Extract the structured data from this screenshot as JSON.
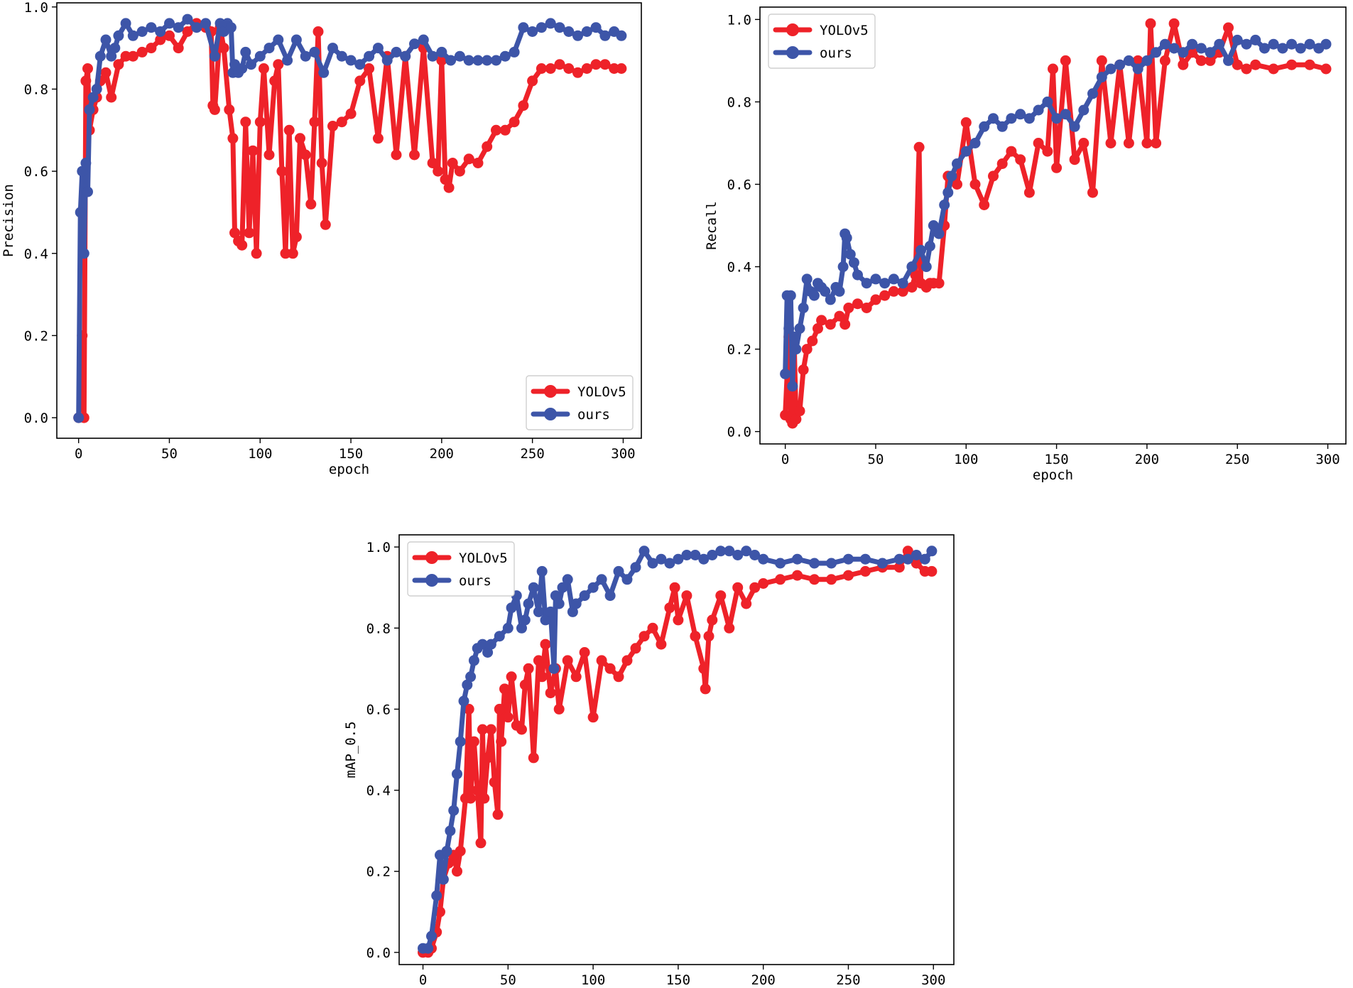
{
  "colors": {
    "yolov5": "#ee2229",
    "ours": "#3d55a8"
  },
  "chart_data": [
    {
      "type": "line",
      "ylabel": "Precision",
      "xlabel": "epoch",
      "xlim": [
        -12,
        310
      ],
      "ylim": [
        -0.05,
        1.01
      ],
      "xticks": [
        0,
        50,
        100,
        150,
        200,
        250,
        300
      ],
      "yticks": [
        0.0,
        0.2,
        0.4,
        0.6,
        0.8,
        1.0
      ],
      "xtick_labels": [
        "0",
        "50",
        "100",
        "150",
        "200",
        "250",
        "300"
      ],
      "ytick_labels": [
        "0.0",
        "0.2",
        "0.4",
        "0.6",
        "0.8",
        "1.0"
      ],
      "legend_position": "lower-right",
      "series": [
        {
          "name": "YOLOv5",
          "color_key": "yolov5",
          "x": [
            0,
            2,
            3,
            4,
            5,
            6,
            8,
            10,
            12,
            15,
            18,
            22,
            26,
            30,
            35,
            40,
            45,
            50,
            55,
            60,
            65,
            70,
            73,
            74,
            75,
            78,
            80,
            83,
            85,
            86,
            88,
            90,
            92,
            94,
            96,
            98,
            100,
            102,
            105,
            108,
            110,
            112,
            114,
            116,
            118,
            120,
            122,
            125,
            128,
            130,
            132,
            134,
            136,
            140,
            145,
            150,
            155,
            160,
            165,
            170,
            175,
            180,
            185,
            190,
            195,
            198,
            200,
            202,
            204,
            206,
            210,
            215,
            220,
            225,
            230,
            235,
            240,
            245,
            250,
            255,
            260,
            265,
            270,
            275,
            280,
            285,
            290,
            295,
            299
          ],
          "values": [
            0.0,
            0.2,
            0.0,
            0.82,
            0.85,
            0.7,
            0.75,
            0.78,
            0.82,
            0.84,
            0.78,
            0.86,
            0.88,
            0.88,
            0.89,
            0.9,
            0.92,
            0.93,
            0.9,
            0.94,
            0.96,
            0.95,
            0.94,
            0.76,
            0.75,
            0.95,
            0.9,
            0.75,
            0.68,
            0.45,
            0.43,
            0.42,
            0.72,
            0.45,
            0.65,
            0.4,
            0.72,
            0.85,
            0.64,
            0.82,
            0.86,
            0.6,
            0.4,
            0.7,
            0.4,
            0.44,
            0.68,
            0.64,
            0.52,
            0.72,
            0.94,
            0.62,
            0.47,
            0.71,
            0.72,
            0.74,
            0.82,
            0.85,
            0.68,
            0.88,
            0.64,
            0.88,
            0.64,
            0.9,
            0.62,
            0.6,
            0.87,
            0.58,
            0.56,
            0.62,
            0.6,
            0.63,
            0.62,
            0.66,
            0.7,
            0.7,
            0.72,
            0.76,
            0.82,
            0.85,
            0.85,
            0.86,
            0.85,
            0.84,
            0.85,
            0.86,
            0.86,
            0.85,
            0.85
          ]
        },
        {
          "name": "ours",
          "color_key": "ours",
          "x": [
            0,
            1,
            2,
            3,
            4,
            5,
            6,
            8,
            10,
            12,
            15,
            18,
            20,
            22,
            26,
            30,
            35,
            40,
            45,
            50,
            55,
            60,
            65,
            70,
            75,
            78,
            80,
            82,
            84,
            85,
            86,
            88,
            90,
            92,
            95,
            100,
            105,
            110,
            115,
            120,
            125,
            130,
            135,
            140,
            145,
            150,
            155,
            160,
            165,
            170,
            175,
            180,
            185,
            190,
            195,
            200,
            205,
            210,
            215,
            220,
            225,
            230,
            235,
            240,
            245,
            250,
            255,
            260,
            265,
            270,
            275,
            280,
            285,
            290,
            295,
            299
          ],
          "values": [
            0.0,
            0.5,
            0.6,
            0.4,
            0.62,
            0.55,
            0.75,
            0.78,
            0.8,
            0.88,
            0.92,
            0.88,
            0.9,
            0.93,
            0.96,
            0.93,
            0.94,
            0.95,
            0.94,
            0.96,
            0.95,
            0.97,
            0.95,
            0.96,
            0.88,
            0.96,
            0.94,
            0.96,
            0.95,
            0.84,
            0.86,
            0.84,
            0.85,
            0.89,
            0.86,
            0.88,
            0.9,
            0.92,
            0.87,
            0.92,
            0.88,
            0.89,
            0.84,
            0.9,
            0.88,
            0.87,
            0.86,
            0.88,
            0.9,
            0.87,
            0.89,
            0.88,
            0.91,
            0.92,
            0.88,
            0.89,
            0.87,
            0.88,
            0.87,
            0.87,
            0.87,
            0.87,
            0.88,
            0.89,
            0.95,
            0.94,
            0.95,
            0.96,
            0.95,
            0.94,
            0.93,
            0.94,
            0.95,
            0.93,
            0.94,
            0.93
          ]
        }
      ]
    },
    {
      "type": "line",
      "ylabel": "Recall",
      "xlabel": "epoch",
      "xlim": [
        -14,
        310
      ],
      "ylim": [
        -0.03,
        1.03
      ],
      "xticks": [
        0,
        50,
        100,
        150,
        200,
        250,
        300
      ],
      "yticks": [
        0.0,
        0.2,
        0.4,
        0.6,
        0.8,
        1.0
      ],
      "xtick_labels": [
        "0",
        "50",
        "100",
        "150",
        "200",
        "250",
        "300"
      ],
      "ytick_labels": [
        "0.0",
        "0.2",
        "0.4",
        "0.6",
        "0.8",
        "1.0"
      ],
      "legend_position": "top-left",
      "series": [
        {
          "name": "YOLOv5",
          "color_key": "yolov5",
          "x": [
            0,
            2,
            3,
            4,
            5,
            6,
            8,
            10,
            12,
            15,
            18,
            20,
            25,
            30,
            33,
            35,
            40,
            45,
            50,
            55,
            60,
            65,
            70,
            72,
            74,
            75,
            78,
            80,
            82,
            85,
            88,
            90,
            95,
            100,
            105,
            110,
            115,
            120,
            125,
            130,
            135,
            140,
            145,
            148,
            150,
            155,
            160,
            165,
            170,
            175,
            180,
            185,
            190,
            195,
            200,
            202,
            205,
            210,
            215,
            220,
            225,
            230,
            235,
            240,
            245,
            250,
            255,
            260,
            270,
            280,
            290,
            299
          ],
          "values": [
            0.04,
            0.23,
            0.03,
            0.02,
            0.2,
            0.03,
            0.05,
            0.15,
            0.2,
            0.22,
            0.25,
            0.27,
            0.26,
            0.28,
            0.26,
            0.3,
            0.31,
            0.3,
            0.32,
            0.33,
            0.34,
            0.34,
            0.35,
            0.38,
            0.69,
            0.36,
            0.35,
            0.36,
            0.36,
            0.36,
            0.5,
            0.62,
            0.6,
            0.75,
            0.6,
            0.55,
            0.62,
            0.65,
            0.68,
            0.66,
            0.58,
            0.7,
            0.68,
            0.88,
            0.64,
            0.9,
            0.66,
            0.7,
            0.58,
            0.9,
            0.7,
            0.89,
            0.7,
            0.9,
            0.7,
            0.99,
            0.7,
            0.9,
            0.99,
            0.89,
            0.92,
            0.9,
            0.9,
            0.92,
            0.98,
            0.89,
            0.88,
            0.89,
            0.88,
            0.89,
            0.89,
            0.88
          ]
        },
        {
          "name": "ours",
          "color_key": "ours",
          "x": [
            0,
            1,
            2,
            3,
            4,
            5,
            6,
            8,
            10,
            12,
            14,
            16,
            18,
            20,
            22,
            25,
            28,
            30,
            32,
            33,
            34,
            36,
            38,
            40,
            45,
            50,
            55,
            60,
            65,
            70,
            75,
            78,
            80,
            82,
            85,
            88,
            90,
            92,
            95,
            100,
            105,
            110,
            115,
            120,
            125,
            130,
            135,
            140,
            145,
            150,
            155,
            160,
            165,
            170,
            175,
            180,
            185,
            190,
            195,
            200,
            205,
            210,
            215,
            220,
            225,
            230,
            235,
            240,
            245,
            250,
            255,
            260,
            265,
            270,
            275,
            280,
            285,
            290,
            295,
            299
          ],
          "values": [
            0.14,
            0.33,
            0.25,
            0.33,
            0.11,
            0.23,
            0.2,
            0.25,
            0.3,
            0.37,
            0.34,
            0.33,
            0.36,
            0.35,
            0.34,
            0.32,
            0.35,
            0.34,
            0.4,
            0.48,
            0.47,
            0.43,
            0.41,
            0.38,
            0.36,
            0.37,
            0.36,
            0.37,
            0.36,
            0.4,
            0.44,
            0.4,
            0.45,
            0.5,
            0.48,
            0.55,
            0.58,
            0.62,
            0.65,
            0.68,
            0.7,
            0.74,
            0.76,
            0.74,
            0.76,
            0.77,
            0.76,
            0.78,
            0.8,
            0.76,
            0.77,
            0.74,
            0.78,
            0.82,
            0.86,
            0.88,
            0.89,
            0.9,
            0.88,
            0.9,
            0.92,
            0.94,
            0.93,
            0.92,
            0.94,
            0.93,
            0.92,
            0.94,
            0.9,
            0.95,
            0.94,
            0.95,
            0.93,
            0.94,
            0.93,
            0.94,
            0.93,
            0.94,
            0.93,
            0.94
          ]
        }
      ]
    },
    {
      "type": "line",
      "ylabel": "mAP_0.5",
      "xlabel": "epoch",
      "xlim": [
        -14,
        312
      ],
      "ylim": [
        -0.03,
        1.03
      ],
      "xticks": [
        0,
        50,
        100,
        150,
        200,
        250,
        300
      ],
      "yticks": [
        0.0,
        0.2,
        0.4,
        0.6,
        0.8,
        1.0
      ],
      "xtick_labels": [
        "0",
        "50",
        "100",
        "150",
        "200",
        "250",
        "300"
      ],
      "ytick_labels": [
        "0.0",
        "0.2",
        "0.4",
        "0.6",
        "0.8",
        "1.0"
      ],
      "legend_position": "top-left",
      "series": [
        {
          "name": "YOLOv5",
          "color_key": "yolov5",
          "x": [
            0,
            3,
            5,
            8,
            10,
            12,
            15,
            18,
            20,
            22,
            25,
            27,
            28,
            30,
            32,
            34,
            35,
            36,
            38,
            40,
            42,
            44,
            45,
            46,
            48,
            50,
            52,
            55,
            58,
            60,
            62,
            65,
            68,
            70,
            72,
            75,
            78,
            80,
            85,
            90,
            95,
            100,
            105,
            110,
            115,
            120,
            125,
            130,
            135,
            140,
            145,
            148,
            150,
            155,
            160,
            165,
            166,
            168,
            170,
            175,
            180,
            185,
            190,
            195,
            200,
            210,
            220,
            230,
            240,
            250,
            260,
            270,
            280,
            285,
            290,
            295,
            299
          ],
          "values": [
            0.0,
            0.0,
            0.01,
            0.05,
            0.1,
            0.18,
            0.22,
            0.24,
            0.2,
            0.25,
            0.38,
            0.6,
            0.38,
            0.52,
            0.4,
            0.27,
            0.55,
            0.38,
            0.48,
            0.55,
            0.42,
            0.34,
            0.6,
            0.52,
            0.65,
            0.58,
            0.68,
            0.56,
            0.55,
            0.66,
            0.7,
            0.48,
            0.72,
            0.68,
            0.76,
            0.64,
            0.7,
            0.6,
            0.72,
            0.68,
            0.74,
            0.58,
            0.72,
            0.7,
            0.68,
            0.72,
            0.75,
            0.78,
            0.8,
            0.76,
            0.85,
            0.9,
            0.82,
            0.88,
            0.78,
            0.7,
            0.65,
            0.78,
            0.82,
            0.88,
            0.8,
            0.9,
            0.86,
            0.9,
            0.91,
            0.92,
            0.93,
            0.92,
            0.92,
            0.93,
            0.94,
            0.95,
            0.95,
            0.99,
            0.96,
            0.94,
            0.94
          ]
        },
        {
          "name": "ours",
          "color_key": "ours",
          "x": [
            0,
            3,
            5,
            8,
            10,
            12,
            14,
            16,
            18,
            20,
            22,
            24,
            26,
            28,
            30,
            32,
            35,
            38,
            40,
            45,
            50,
            52,
            55,
            58,
            60,
            62,
            65,
            68,
            70,
            72,
            75,
            77,
            78,
            80,
            82,
            85,
            88,
            90,
            95,
            100,
            105,
            110,
            115,
            120,
            125,
            130,
            135,
            140,
            145,
            150,
            155,
            160,
            165,
            170,
            175,
            180,
            185,
            190,
            195,
            200,
            210,
            220,
            230,
            240,
            250,
            260,
            270,
            280,
            285,
            290,
            295,
            299
          ],
          "values": [
            0.01,
            0.01,
            0.04,
            0.14,
            0.24,
            0.18,
            0.25,
            0.3,
            0.35,
            0.44,
            0.52,
            0.62,
            0.66,
            0.68,
            0.72,
            0.75,
            0.76,
            0.74,
            0.76,
            0.78,
            0.8,
            0.85,
            0.88,
            0.8,
            0.82,
            0.86,
            0.9,
            0.84,
            0.94,
            0.82,
            0.84,
            0.7,
            0.88,
            0.86,
            0.9,
            0.92,
            0.84,
            0.86,
            0.88,
            0.9,
            0.92,
            0.88,
            0.94,
            0.92,
            0.95,
            0.99,
            0.96,
            0.97,
            0.96,
            0.97,
            0.98,
            0.98,
            0.97,
            0.98,
            0.99,
            0.99,
            0.98,
            0.99,
            0.98,
            0.97,
            0.96,
            0.97,
            0.96,
            0.96,
            0.97,
            0.97,
            0.96,
            0.97,
            0.97,
            0.98,
            0.97,
            0.99
          ]
        }
      ]
    }
  ]
}
